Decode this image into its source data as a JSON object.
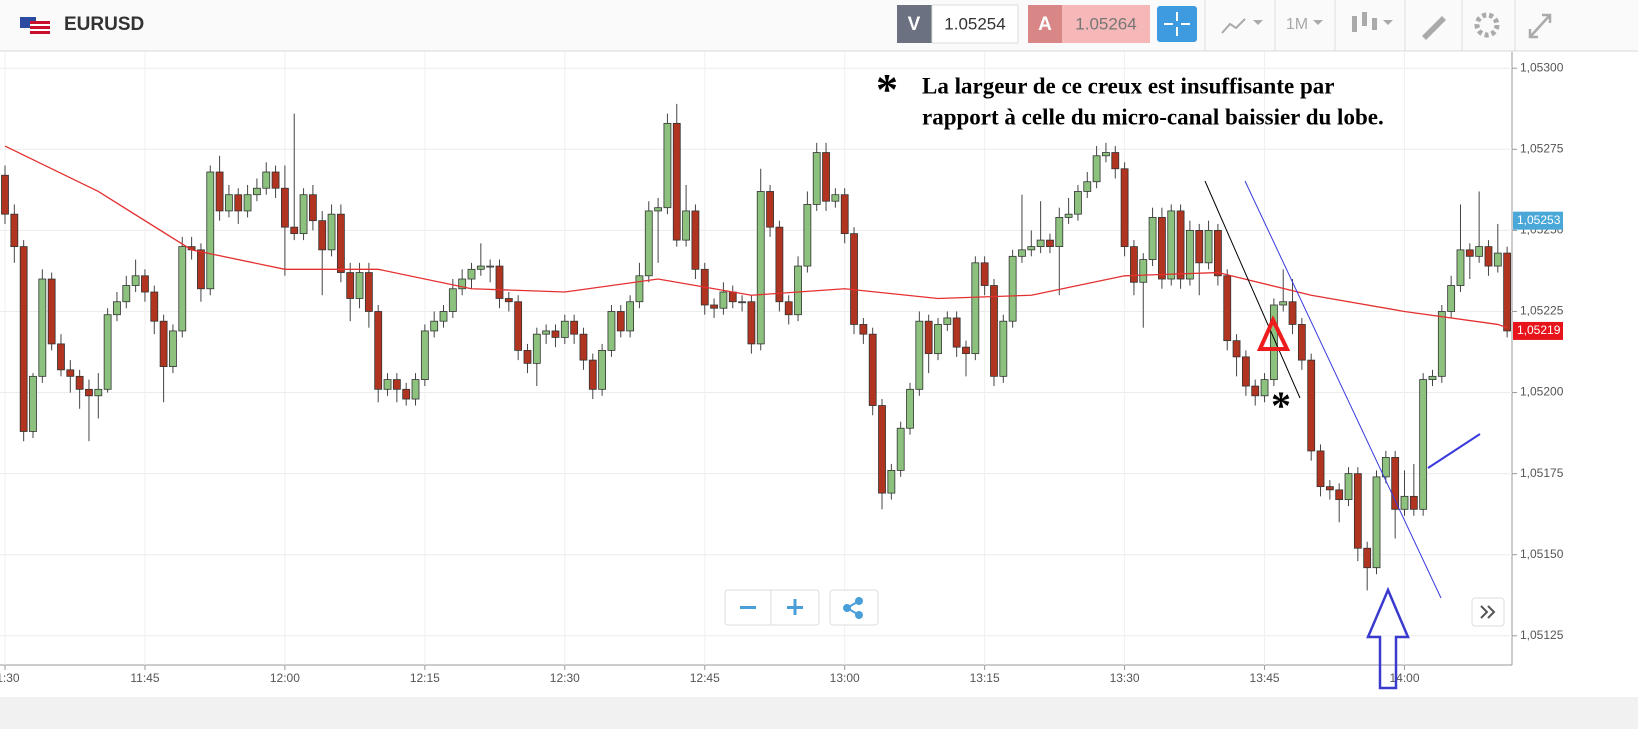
{
  "toolbar": {
    "symbol": "EURUSD",
    "bid_label": "V",
    "bid": "1.05254",
    "ask_label": "A",
    "ask": "1.05264",
    "timeframe": "1M"
  },
  "chart_data": {
    "type": "candlestick",
    "up_color": "#8cc27e",
    "down_color": "#b0341f",
    "grid": true,
    "annotation": {
      "marker": "*",
      "lines": [
        "La largeur de ce creux est insuffisante par",
        "rapport à celle du micro-canal baissier du lobe."
      ]
    },
    "x": [
      "11:30",
      "11:31",
      "11:32",
      "11:33",
      "11:34",
      "11:35",
      "11:36",
      "11:37",
      "11:38",
      "11:39",
      "11:40",
      "11:41",
      "11:42",
      "11:43",
      "11:44",
      "11:45",
      "11:46",
      "11:47",
      "11:48",
      "11:49",
      "11:50",
      "11:51",
      "11:52",
      "11:53",
      "11:54",
      "11:55",
      "11:56",
      "11:57",
      "11:58",
      "11:59",
      "12:00",
      "12:01",
      "12:02",
      "12:03",
      "12:04",
      "12:05",
      "12:06",
      "12:07",
      "12:08",
      "12:09",
      "12:10",
      "12:11",
      "12:12",
      "12:13",
      "12:14",
      "12:15",
      "12:16",
      "12:17",
      "12:18",
      "12:19",
      "12:20",
      "12:21",
      "12:22",
      "12:23",
      "12:24",
      "12:25",
      "12:26",
      "12:27",
      "12:28",
      "12:29",
      "12:30",
      "12:31",
      "12:32",
      "12:33",
      "12:34",
      "12:35",
      "12:36",
      "12:37",
      "12:38",
      "12:39",
      "12:40",
      "12:41",
      "12:42",
      "12:43",
      "12:44",
      "12:45",
      "12:46",
      "12:47",
      "12:48",
      "12:49",
      "12:50",
      "12:51",
      "12:52",
      "12:53",
      "12:54",
      "12:55",
      "12:56",
      "12:57",
      "12:58",
      "12:59",
      "13:00",
      "13:01",
      "13:02",
      "13:03",
      "13:04",
      "13:05",
      "13:06",
      "13:07",
      "13:08",
      "13:09",
      "13:10",
      "13:11",
      "13:12",
      "13:13",
      "13:14",
      "13:15",
      "13:16",
      "13:17",
      "13:18",
      "13:19",
      "13:20",
      "13:21",
      "13:22",
      "13:23",
      "13:24",
      "13:25",
      "13:26",
      "13:27",
      "13:28",
      "13:29",
      "13:30",
      "13:31",
      "13:32",
      "13:33",
      "13:34",
      "13:35",
      "13:36",
      "13:37",
      "13:38",
      "13:39",
      "13:40",
      "13:41",
      "13:42",
      "13:43",
      "13:44",
      "13:45",
      "13:46",
      "13:47",
      "13:48",
      "13:49",
      "13:50",
      "13:51",
      "13:52",
      "13:53",
      "13:54",
      "13:55",
      "13:56",
      "13:57",
      "13:58",
      "13:59",
      "14:00",
      "14:01",
      "14:02",
      "14:03",
      "14:04",
      "14:05",
      "14:06",
      "14:07",
      "14:08",
      "14:09",
      "14:10",
      "14:11"
    ],
    "ohlc": [
      [
        1.05267,
        1.0527,
        1.05252,
        1.05255
      ],
      [
        1.05255,
        1.05258,
        1.0524,
        1.05245
      ],
      [
        1.05245,
        1.05247,
        1.05185,
        1.05188
      ],
      [
        1.05188,
        1.05206,
        1.05186,
        1.05205
      ],
      [
        1.05205,
        1.05238,
        1.05203,
        1.05235
      ],
      [
        1.05235,
        1.05237,
        1.05213,
        1.05215
      ],
      [
        1.05215,
        1.05218,
        1.05205,
        1.05207
      ],
      [
        1.05207,
        1.0521,
        1.052,
        1.05205
      ],
      [
        1.05205,
        1.05207,
        1.05195,
        1.05201
      ],
      [
        1.05201,
        1.05204,
        1.05185,
        1.05199
      ],
      [
        1.05199,
        1.05206,
        1.05192,
        1.05201
      ],
      [
        1.05201,
        1.05226,
        1.052,
        1.05224
      ],
      [
        1.05224,
        1.05231,
        1.05222,
        1.05228
      ],
      [
        1.05228,
        1.05236,
        1.05226,
        1.05233
      ],
      [
        1.05233,
        1.05241,
        1.05231,
        1.05236
      ],
      [
        1.05236,
        1.05238,
        1.05228,
        1.05231
      ],
      [
        1.05231,
        1.05233,
        1.05218,
        1.05222
      ],
      [
        1.05222,
        1.05224,
        1.05197,
        1.05208
      ],
      [
        1.05208,
        1.05221,
        1.05206,
        1.05219
      ],
      [
        1.05219,
        1.05248,
        1.05217,
        1.05245
      ],
      [
        1.05245,
        1.05248,
        1.05241,
        1.05244
      ],
      [
        1.05244,
        1.05246,
        1.05228,
        1.05232
      ],
      [
        1.05232,
        1.0527,
        1.0523,
        1.05268
      ],
      [
        1.05268,
        1.05273,
        1.05253,
        1.05256
      ],
      [
        1.05256,
        1.05264,
        1.05254,
        1.05261
      ],
      [
        1.05261,
        1.05263,
        1.05252,
        1.05256
      ],
      [
        1.05256,
        1.05264,
        1.05254,
        1.05261
      ],
      [
        1.05261,
        1.05266,
        1.05259,
        1.05263
      ],
      [
        1.05263,
        1.05271,
        1.05261,
        1.05268
      ],
      [
        1.05268,
        1.0527,
        1.0526,
        1.05263
      ],
      [
        1.05263,
        1.0527,
        1.05236,
        1.05251
      ],
      [
        1.05251,
        1.05286,
        1.05247,
        1.05249
      ],
      [
        1.05249,
        1.05263,
        1.05247,
        1.05261
      ],
      [
        1.05261,
        1.05264,
        1.0525,
        1.05253
      ],
      [
        1.05253,
        1.05256,
        1.0523,
        1.05244
      ],
      [
        1.05244,
        1.05258,
        1.05242,
        1.05255
      ],
      [
        1.05255,
        1.05258,
        1.05234,
        1.05237
      ],
      [
        1.05237,
        1.0524,
        1.05222,
        1.05229
      ],
      [
        1.05229,
        1.0524,
        1.05226,
        1.05237
      ],
      [
        1.05237,
        1.0524,
        1.0522,
        1.05225
      ],
      [
        1.05225,
        1.05227,
        1.05197,
        1.05201
      ],
      [
        1.05201,
        1.05206,
        1.05199,
        1.05204
      ],
      [
        1.05204,
        1.05206,
        1.05197,
        1.05201
      ],
      [
        1.05201,
        1.05203,
        1.05196,
        1.05198
      ],
      [
        1.05198,
        1.05206,
        1.05196,
        1.05204
      ],
      [
        1.05204,
        1.05221,
        1.05202,
        1.05219
      ],
      [
        1.05219,
        1.05225,
        1.05217,
        1.05222
      ],
      [
        1.05222,
        1.05227,
        1.0522,
        1.05225
      ],
      [
        1.05225,
        1.05235,
        1.05223,
        1.05232
      ],
      [
        1.05232,
        1.05238,
        1.0523,
        1.05235
      ],
      [
        1.05235,
        1.0524,
        1.05232,
        1.05238
      ],
      [
        1.05238,
        1.05246,
        1.05236,
        1.05239
      ],
      [
        1.05239,
        1.05241,
        1.05234,
        1.05239
      ],
      [
        1.05239,
        1.05241,
        1.05226,
        1.05229
      ],
      [
        1.05229,
        1.05231,
        1.05225,
        1.05228
      ],
      [
        1.05228,
        1.0523,
        1.0521,
        1.05213
      ],
      [
        1.05213,
        1.05215,
        1.05206,
        1.05209
      ],
      [
        1.05209,
        1.0522,
        1.05202,
        1.05218
      ],
      [
        1.05218,
        1.05221,
        1.05215,
        1.05219
      ],
      [
        1.05219,
        1.05221,
        1.05214,
        1.05217
      ],
      [
        1.05217,
        1.05224,
        1.05215,
        1.05222
      ],
      [
        1.05222,
        1.05224,
        1.05215,
        1.05218
      ],
      [
        1.05218,
        1.0522,
        1.05207,
        1.0521
      ],
      [
        1.0521,
        1.05212,
        1.05198,
        1.05201
      ],
      [
        1.05201,
        1.05215,
        1.05199,
        1.05213
      ],
      [
        1.05213,
        1.05227,
        1.05211,
        1.05225
      ],
      [
        1.05225,
        1.05227,
        1.05217,
        1.05219
      ],
      [
        1.05219,
        1.0523,
        1.05217,
        1.05228
      ],
      [
        1.05228,
        1.0524,
        1.05226,
        1.05236
      ],
      [
        1.05236,
        1.05259,
        1.05234,
        1.05256
      ],
      [
        1.05256,
        1.0526,
        1.0524,
        1.05257
      ],
      [
        1.05257,
        1.05286,
        1.05255,
        1.05283
      ],
      [
        1.05283,
        1.05289,
        1.05245,
        1.05247
      ],
      [
        1.05247,
        1.05264,
        1.05245,
        1.05256
      ],
      [
        1.05256,
        1.05258,
        1.05235,
        1.05238
      ],
      [
        1.05238,
        1.0524,
        1.05224,
        1.05227
      ],
      [
        1.05227,
        1.05229,
        1.05223,
        1.05226
      ],
      [
        1.05226,
        1.05234,
        1.05224,
        1.05231
      ],
      [
        1.05231,
        1.05233,
        1.05226,
        1.05228
      ],
      [
        1.05228,
        1.0523,
        1.05225,
        1.05228
      ],
      [
        1.05228,
        1.0523,
        1.05212,
        1.05215
      ],
      [
        1.05215,
        1.05269,
        1.05213,
        1.05262
      ],
      [
        1.05262,
        1.05264,
        1.05248,
        1.05251
      ],
      [
        1.05251,
        1.05253,
        1.05225,
        1.05228
      ],
      [
        1.05228,
        1.0523,
        1.05221,
        1.05224
      ],
      [
        1.05224,
        1.05242,
        1.05222,
        1.05239
      ],
      [
        1.05239,
        1.05262,
        1.05237,
        1.05258
      ],
      [
        1.05258,
        1.05277,
        1.05256,
        1.05274
      ],
      [
        1.05274,
        1.05277,
        1.05256,
        1.05259
      ],
      [
        1.05259,
        1.05263,
        1.05257,
        1.05261
      ],
      [
        1.05261,
        1.05263,
        1.05246,
        1.05249
      ],
      [
        1.05249,
        1.05251,
        1.05218,
        1.05221
      ],
      [
        1.05221,
        1.05223,
        1.05215,
        1.05218
      ],
      [
        1.05218,
        1.0522,
        1.05193,
        1.05196
      ],
      [
        1.05196,
        1.05198,
        1.05164,
        1.05169
      ],
      [
        1.05169,
        1.05178,
        1.05167,
        1.05176
      ],
      [
        1.05176,
        1.05191,
        1.05174,
        1.05189
      ],
      [
        1.05189,
        1.05203,
        1.05187,
        1.05201
      ],
      [
        1.05201,
        1.05225,
        1.05199,
        1.05222
      ],
      [
        1.05222,
        1.05224,
        1.05206,
        1.05212
      ],
      [
        1.05212,
        1.05223,
        1.0521,
        1.05221
      ],
      [
        1.05221,
        1.05225,
        1.05219,
        1.05223
      ],
      [
        1.05223,
        1.05225,
        1.05211,
        1.05214
      ],
      [
        1.05214,
        1.05216,
        1.05205,
        1.05212
      ],
      [
        1.05212,
        1.05242,
        1.0521,
        1.0524
      ],
      [
        1.0524,
        1.05242,
        1.0523,
        1.05233
      ],
      [
        1.05233,
        1.05235,
        1.05202,
        1.05205
      ],
      [
        1.05205,
        1.05224,
        1.05203,
        1.05222
      ],
      [
        1.05222,
        1.05244,
        1.0522,
        1.05242
      ],
      [
        1.05242,
        1.05261,
        1.0524,
        1.05244
      ],
      [
        1.05244,
        1.0525,
        1.05242,
        1.05245
      ],
      [
        1.05245,
        1.05259,
        1.05243,
        1.05247
      ],
      [
        1.05247,
        1.05249,
        1.05243,
        1.05245
      ],
      [
        1.05245,
        1.05257,
        1.0523,
        1.05254
      ],
      [
        1.05254,
        1.0526,
        1.05252,
        1.05255
      ],
      [
        1.05255,
        1.05264,
        1.05253,
        1.05262
      ],
      [
        1.05262,
        1.05268,
        1.0526,
        1.05265
      ],
      [
        1.05265,
        1.05276,
        1.05263,
        1.05273
      ],
      [
        1.05273,
        1.05277,
        1.05271,
        1.05274
      ],
      [
        1.05274,
        1.05276,
        1.05266,
        1.05269
      ],
      [
        1.05269,
        1.05271,
        1.05242,
        1.05245
      ],
      [
        1.05245,
        1.05247,
        1.0523,
        1.05234
      ],
      [
        1.05234,
        1.05243,
        1.0522,
        1.05241
      ],
      [
        1.05241,
        1.05257,
        1.05239,
        1.05254
      ],
      [
        1.05254,
        1.05257,
        1.05232,
        1.05235
      ],
      [
        1.05235,
        1.05258,
        1.05233,
        1.05256
      ],
      [
        1.05256,
        1.05258,
        1.05232,
        1.05235
      ],
      [
        1.05235,
        1.05253,
        1.05233,
        1.0525
      ],
      [
        1.0525,
        1.05252,
        1.0523,
        1.0524
      ],
      [
        1.0524,
        1.05253,
        1.05238,
        1.0525
      ],
      [
        1.0525,
        1.05252,
        1.05233,
        1.05236
      ],
      [
        1.05236,
        1.05238,
        1.05213,
        1.05216
      ],
      [
        1.05216,
        1.05218,
        1.05205,
        1.05211
      ],
      [
        1.05211,
        1.05213,
        1.05199,
        1.05202
      ],
      [
        1.05202,
        1.05204,
        1.05196,
        1.05199
      ],
      [
        1.05199,
        1.05206,
        1.05197,
        1.05204
      ],
      [
        1.05204,
        1.05229,
        1.05202,
        1.05227
      ],
      [
        1.05227,
        1.05238,
        1.05225,
        1.05228
      ],
      [
        1.05228,
        1.05235,
        1.05218,
        1.05221
      ],
      [
        1.05221,
        1.05223,
        1.05207,
        1.0521
      ],
      [
        1.0521,
        1.05212,
        1.05179,
        1.05182
      ],
      [
        1.05182,
        1.05184,
        1.05168,
        1.05171
      ],
      [
        1.05171,
        1.05173,
        1.05167,
        1.0517
      ],
      [
        1.0517,
        1.05172,
        1.0516,
        1.05167
      ],
      [
        1.05167,
        1.05177,
        1.05165,
        1.05175
      ],
      [
        1.05175,
        1.05177,
        1.05148,
        1.05152
      ],
      [
        1.05152,
        1.05154,
        1.05139,
        1.05146
      ],
      [
        1.05146,
        1.05176,
        1.05144,
        1.05174
      ],
      [
        1.05174,
        1.05182,
        1.05172,
        1.0518
      ],
      [
        1.0518,
        1.05182,
        1.05155,
        1.05164
      ],
      [
        1.05164,
        1.05176,
        1.05162,
        1.05168
      ],
      [
        1.05168,
        1.05178,
        1.05162,
        1.05164
      ],
      [
        1.05164,
        1.05206,
        1.05162,
        1.05204
      ],
      [
        1.05204,
        1.05207,
        1.05202,
        1.05205
      ],
      [
        1.05205,
        1.05227,
        1.05203,
        1.05225
      ],
      [
        1.05225,
        1.05236,
        1.05223,
        1.05233
      ],
      [
        1.05233,
        1.05258,
        1.05231,
        1.05244
      ],
      [
        1.05244,
        1.05246,
        1.05235,
        1.05242
      ],
      [
        1.05242,
        1.05262,
        1.0524,
        1.05245
      ],
      [
        1.05245,
        1.05247,
        1.05236,
        1.05239
      ],
      [
        1.05239,
        1.05252,
        1.05237,
        1.05243
      ],
      [
        1.05243,
        1.05245,
        1.05217,
        1.05219
      ]
    ],
    "ma": {
      "color": "#e53030",
      "x": [
        "11:30",
        "11:40",
        "11:50",
        "12:00",
        "12:10",
        "12:20",
        "12:30",
        "12:40",
        "12:50",
        "13:00",
        "13:10",
        "13:20",
        "13:30",
        "13:40",
        "13:50",
        "14:00",
        "14:10",
        "14:11"
      ],
      "values": [
        1.05276,
        1.05262,
        1.05244,
        1.05238,
        1.05238,
        1.05232,
        1.05231,
        1.05235,
        1.0523,
        1.05232,
        1.05229,
        1.0523,
        1.05236,
        1.05237,
        1.0523,
        1.05225,
        1.05221,
        1.0522
      ]
    },
    "ylim": [
      1.05116,
      1.05305
    ],
    "yticks": [
      {
        "value": 1.053,
        "label": "1,05300"
      },
      {
        "value": 1.05275,
        "label": "1,05275"
      },
      {
        "value": 1.0525,
        "label": "1,05250"
      },
      {
        "value": 1.05225,
        "label": "1,05225"
      },
      {
        "value": 1.052,
        "label": "1,05200"
      },
      {
        "value": 1.05175,
        "label": "1,05175"
      },
      {
        "value": 1.0515,
        "label": "1,05150"
      },
      {
        "value": 1.05125,
        "label": "1,05125"
      }
    ],
    "xticks": [
      "11:30",
      "11:45",
      "12:00",
      "12:15",
      "12:30",
      "12:45",
      "13:00",
      "13:15",
      "13:30",
      "13:45",
      "14:00"
    ],
    "price_tags": [
      {
        "value": 1.05253,
        "label": "1,05253",
        "color": "#4aa8d8"
      },
      {
        "value": 1.05219,
        "label": "1,05219",
        "color": "#e8141c"
      }
    ]
  }
}
